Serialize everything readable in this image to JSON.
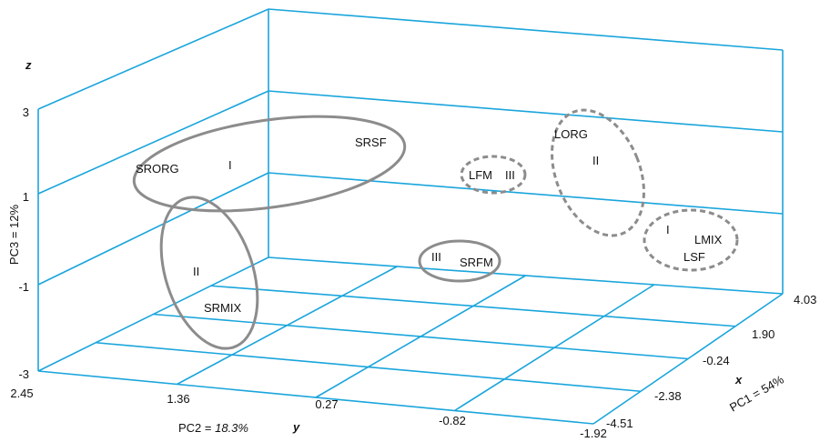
{
  "chart_data": {
    "type": "scatter",
    "subtype": "3d-pca",
    "axes": {
      "x": {
        "letter": "x",
        "label": "PC1 = 54%",
        "ticks": [
          "4.03",
          "1.90",
          "-0.24",
          "-2.38",
          "-4.51"
        ]
      },
      "y": {
        "letter": "y",
        "label_prefix": "PC2 = ",
        "label_value": "18.3%",
        "ticks": [
          "2.45",
          "1.36",
          "0.27",
          "-0.82",
          "-1.92"
        ]
      },
      "z": {
        "letter": "z",
        "label": "PC3 = 12%",
        "ticks": [
          "3",
          "1",
          "-1",
          "-3"
        ]
      }
    },
    "grid": true,
    "colors": {
      "grid": "#1aa5dc",
      "solid_group": "#8c8c8c",
      "dashed_group": "#8c8c8c"
    },
    "groups": [
      {
        "roman": "I",
        "style": "solid",
        "labels": [
          "SRORG",
          "SRSF"
        ]
      },
      {
        "roman": "II",
        "style": "solid",
        "labels": [
          "SRMIX"
        ]
      },
      {
        "roman": "III",
        "style": "solid",
        "labels": [
          "SRFM"
        ]
      },
      {
        "roman": "III",
        "style": "dashed",
        "labels": [
          "LFM"
        ]
      },
      {
        "roman": "II",
        "style": "dashed",
        "labels": [
          "LORG"
        ]
      },
      {
        "roman": "I",
        "style": "dashed",
        "labels": [
          "LMIX",
          "LSF"
        ]
      }
    ]
  }
}
